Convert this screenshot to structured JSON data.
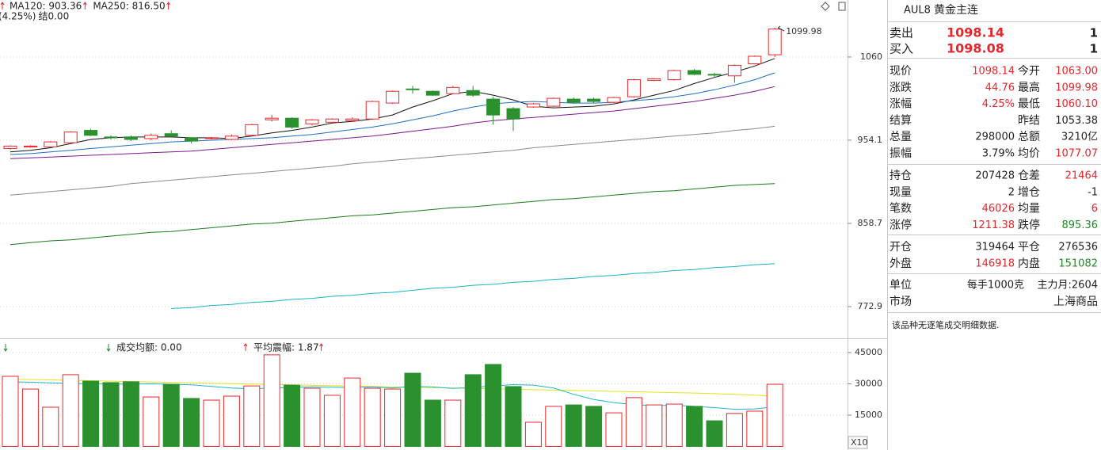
{
  "chart_data": [
    {
      "type": "candlestick",
      "legend": [
        {
          "text": "MA120: 903.36",
          "color": "#1e7b1e"
        },
        {
          "text": "MA250: 816.50",
          "color": "#17b3c8"
        }
      ],
      "change_text": "(4.25%)",
      "settle_text": "结0.00",
      "log_scale": true,
      "grid": true,
      "ylim": [
        744,
        1139.3
      ],
      "yticks": [
        772.9,
        858.7,
        954.1,
        1060
      ],
      "up_color": "#e5272b",
      "down_color": "#2a912e",
      "open": [
        944,
        946,
        946,
        951,
        966,
        958,
        958,
        956,
        962,
        957,
        956,
        955,
        960,
        979,
        981,
        974,
        976,
        978,
        980,
        1000,
        1018,
        1015,
        1012,
        1016,
        1005,
        993,
        995,
        996,
        1005,
        1005,
        1001,
        1008,
        1029,
        1030,
        1042,
        1037,
        1035,
        1051,
        1063.0
      ],
      "high": [
        948,
        948,
        953,
        965,
        968,
        960,
        960,
        962,
        966,
        958,
        958,
        961,
        974,
        985,
        982,
        980,
        981,
        982,
        1003,
        1016,
        1022,
        1016,
        1022,
        1022,
        1008,
        995,
        1000,
        1007,
        1007,
        1007,
        1008,
        1031,
        1032,
        1043,
        1044,
        1039,
        1050,
        1062,
        1099.98
      ],
      "low": [
        943,
        945,
        945,
        950,
        959,
        955,
        953,
        954,
        957,
        950,
        955,
        954,
        959,
        977,
        968,
        972,
        975,
        977,
        979,
        999,
        1012,
        1009,
        1011,
        1008,
        973,
        965,
        994,
        995,
        999,
        1000,
        1000,
        1007,
        1028,
        1029,
        1036,
        1033,
        1026,
        1050,
        1060.1
      ],
      "close": [
        947,
        947,
        952,
        964,
        960,
        957,
        955,
        960,
        959,
        953,
        957,
        959,
        973,
        981,
        970,
        979,
        980,
        980,
        1002,
        1015,
        1017,
        1010,
        1020,
        1010,
        985,
        980,
        999,
        1006,
        1001,
        1002,
        1007,
        1030,
        1031,
        1042,
        1037,
        1036,
        1049,
        1061,
        1098.14
      ],
      "lines": [
        {
          "color": "#111111",
          "values": [
            940,
            942,
            945,
            950,
            955,
            957,
            958,
            958,
            958,
            957,
            957,
            956,
            959,
            963,
            966,
            970,
            975,
            977,
            980,
            985,
            995,
            1003,
            1012,
            1015,
            1010,
            1004,
            996,
            994,
            995,
            996,
            999,
            1004,
            1010,
            1016,
            1025,
            1033,
            1040,
            1048,
            1058
          ]
        },
        {
          "color": "#1f6fc4",
          "values": [
            937,
            938,
            940,
            942,
            944,
            946,
            948,
            950,
            952,
            953,
            954,
            955,
            956,
            957,
            959,
            961,
            964,
            967,
            970,
            974,
            979,
            984,
            990,
            995,
            999,
            1001,
            1002,
            1001,
            1000,
            1000,
            1001,
            1003,
            1005,
            1008,
            1012,
            1017,
            1023,
            1030,
            1039
          ]
        },
        {
          "color": "#7a1a8c",
          "values": [
            932,
            933,
            934,
            935,
            936,
            937,
            938,
            939,
            940,
            941,
            943,
            945,
            947,
            949,
            951,
            953,
            955,
            957,
            959,
            962,
            965,
            968,
            971,
            975,
            978,
            980,
            982,
            984,
            986,
            988,
            990,
            993,
            996,
            999,
            1002,
            1006,
            1010,
            1015,
            1021
          ]
        },
        {
          "color": "#8a8a8a",
          "values": [
            890,
            892,
            894,
            896,
            898,
            900,
            903,
            905,
            907,
            909,
            911,
            913,
            915,
            917,
            919,
            921,
            923,
            926,
            928,
            930,
            932,
            934,
            936,
            938,
            940,
            942,
            945,
            947,
            949,
            951,
            953,
            955,
            957,
            959,
            961,
            963,
            966,
            968,
            971
          ]
        },
        {
          "color": "#1e7b1e",
          "values": [
            836,
            838,
            840,
            841,
            843,
            845,
            847,
            849,
            850,
            852,
            854,
            856,
            858,
            859,
            861,
            863,
            865,
            867,
            868,
            870,
            872,
            874,
            876,
            877,
            879,
            881,
            883,
            885,
            886,
            888,
            890,
            892,
            894,
            895,
            897,
            899,
            901,
            902,
            903
          ]
        },
        {
          "color": "#17b3c8",
          "values": [
            null,
            null,
            null,
            null,
            null,
            null,
            null,
            null,
            771,
            772,
            774,
            775,
            777,
            778,
            780,
            781,
            783,
            784,
            786,
            787,
            789,
            791,
            792,
            794,
            795,
            797,
            798,
            800,
            801,
            803,
            804,
            806,
            807,
            809,
            810,
            812,
            813,
            815,
            816
          ]
        }
      ],
      "annotation": "1099.98"
    },
    {
      "type": "volume",
      "legend": [
        {
          "text": "成交均额: 0.00",
          "color": "#c02fa0"
        },
        {
          "text": "平均震幅: 1.87",
          "color": "#c02fa0"
        }
      ],
      "unit_label": "X10",
      "grid": true,
      "ylim": [
        0,
        51450
      ],
      "yticks": [
        15000,
        30000,
        45000
      ],
      "values": [
        33600,
        27500,
        18800,
        34400,
        31300,
        30600,
        31000,
        23700,
        29800,
        23000,
        22200,
        24100,
        29000,
        43900,
        29400,
        27900,
        24500,
        32800,
        27900,
        27500,
        35100,
        22200,
        22200,
        34400,
        39300,
        28700,
        11600,
        19200,
        19900,
        19200,
        16100,
        23400,
        19900,
        20300,
        19200,
        12300,
        15800,
        16900,
        29800
      ],
      "lines": [
        {
          "color": "#e3e31a",
          "values": [
            32300,
            32100,
            31900,
            31700,
            31500,
            31300,
            31100,
            30900,
            30700,
            30500,
            30300,
            30100,
            29900,
            29700,
            29500,
            29300,
            29100,
            28900,
            28700,
            28500,
            28400,
            28200,
            28000,
            27800,
            27600,
            27400,
            27200,
            27000,
            26800,
            26600,
            26400,
            26200,
            26000,
            25800,
            25600,
            25300,
            25000,
            24600,
            24000
          ]
        },
        {
          "color": "#19b6d2",
          "values": [
            31000,
            30800,
            30500,
            30200,
            30000,
            29900,
            29900,
            30000,
            29800,
            29500,
            28800,
            28000,
            27600,
            28000,
            28300,
            28600,
            28400,
            28200,
            28600,
            28000,
            28800,
            28500,
            27800,
            28300,
            29000,
            29600,
            29400,
            28000,
            25000,
            22500,
            21000,
            20000,
            19500,
            19800,
            19200,
            18600,
            17800,
            18000,
            19000
          ]
        }
      ]
    }
  ],
  "quote": {
    "symbol": "AUL8",
    "name": "黄金主连",
    "book": [
      {
        "label": "卖出",
        "price": "1098.14",
        "volume": "1"
      },
      {
        "label": "买入",
        "price": "1098.08",
        "volume": "1"
      }
    ],
    "sections": [
      [
        [
          {
            "label": "现价",
            "value": "1098.14",
            "tone": "up"
          },
          {
            "label": "今开",
            "value": "1063.00",
            "tone": "up"
          }
        ],
        [
          {
            "label": "涨跌",
            "value": "44.76",
            "tone": "up"
          },
          {
            "label": "最高",
            "value": "1099.98",
            "tone": "up"
          }
        ],
        [
          {
            "label": "涨幅",
            "value": "4.25%",
            "tone": "up"
          },
          {
            "label": "最低",
            "value": "1060.10",
            "tone": "up"
          }
        ],
        [
          {
            "label": "结算"
          },
          {
            "label": "昨结",
            "value": "1053.38",
            "tone": "flat"
          }
        ],
        [
          {
            "label": "总量",
            "value": "298000",
            "tone": "flat"
          },
          {
            "label": "总额",
            "value": "3210亿",
            "tone": "flat"
          }
        ],
        [
          {
            "label": "振幅",
            "value": "3.79%",
            "tone": "flat"
          },
          {
            "label": "均价",
            "value": "1077.07",
            "tone": "up"
          }
        ]
      ],
      [
        [
          {
            "label": "持仓",
            "value": "207428",
            "tone": "flat"
          },
          {
            "label": "仓差",
            "value": "21464",
            "tone": "up"
          }
        ],
        [
          {
            "label": "现量",
            "value": "2",
            "tone": "flat"
          },
          {
            "label": "增仓",
            "value": "-1",
            "tone": "flat"
          }
        ],
        [
          {
            "label": "笔数",
            "value": "46026",
            "tone": "up"
          },
          {
            "label": "均量",
            "value": "6",
            "tone": "up"
          }
        ],
        [
          {
            "label": "涨停",
            "value": "1211.38",
            "tone": "up"
          },
          {
            "label": "跌停",
            "value": "895.36",
            "tone": "down"
          }
        ]
      ],
      [
        [
          {
            "label": "开仓",
            "value": "319464",
            "tone": "flat"
          },
          {
            "label": "平仓",
            "value": "276536",
            "tone": "flat"
          }
        ],
        [
          {
            "label": "外盘",
            "value": "146918",
            "tone": "up"
          },
          {
            "label": "内盘",
            "value": "151082",
            "tone": "down"
          }
        ]
      ]
    ],
    "info": [
      {
        "label": "单位",
        "value": "每手1000克",
        "extra": "主力月:2604"
      },
      {
        "label": "市场",
        "value": "上海商品"
      }
    ],
    "note": "该品种无逐笔成交明细数据."
  }
}
